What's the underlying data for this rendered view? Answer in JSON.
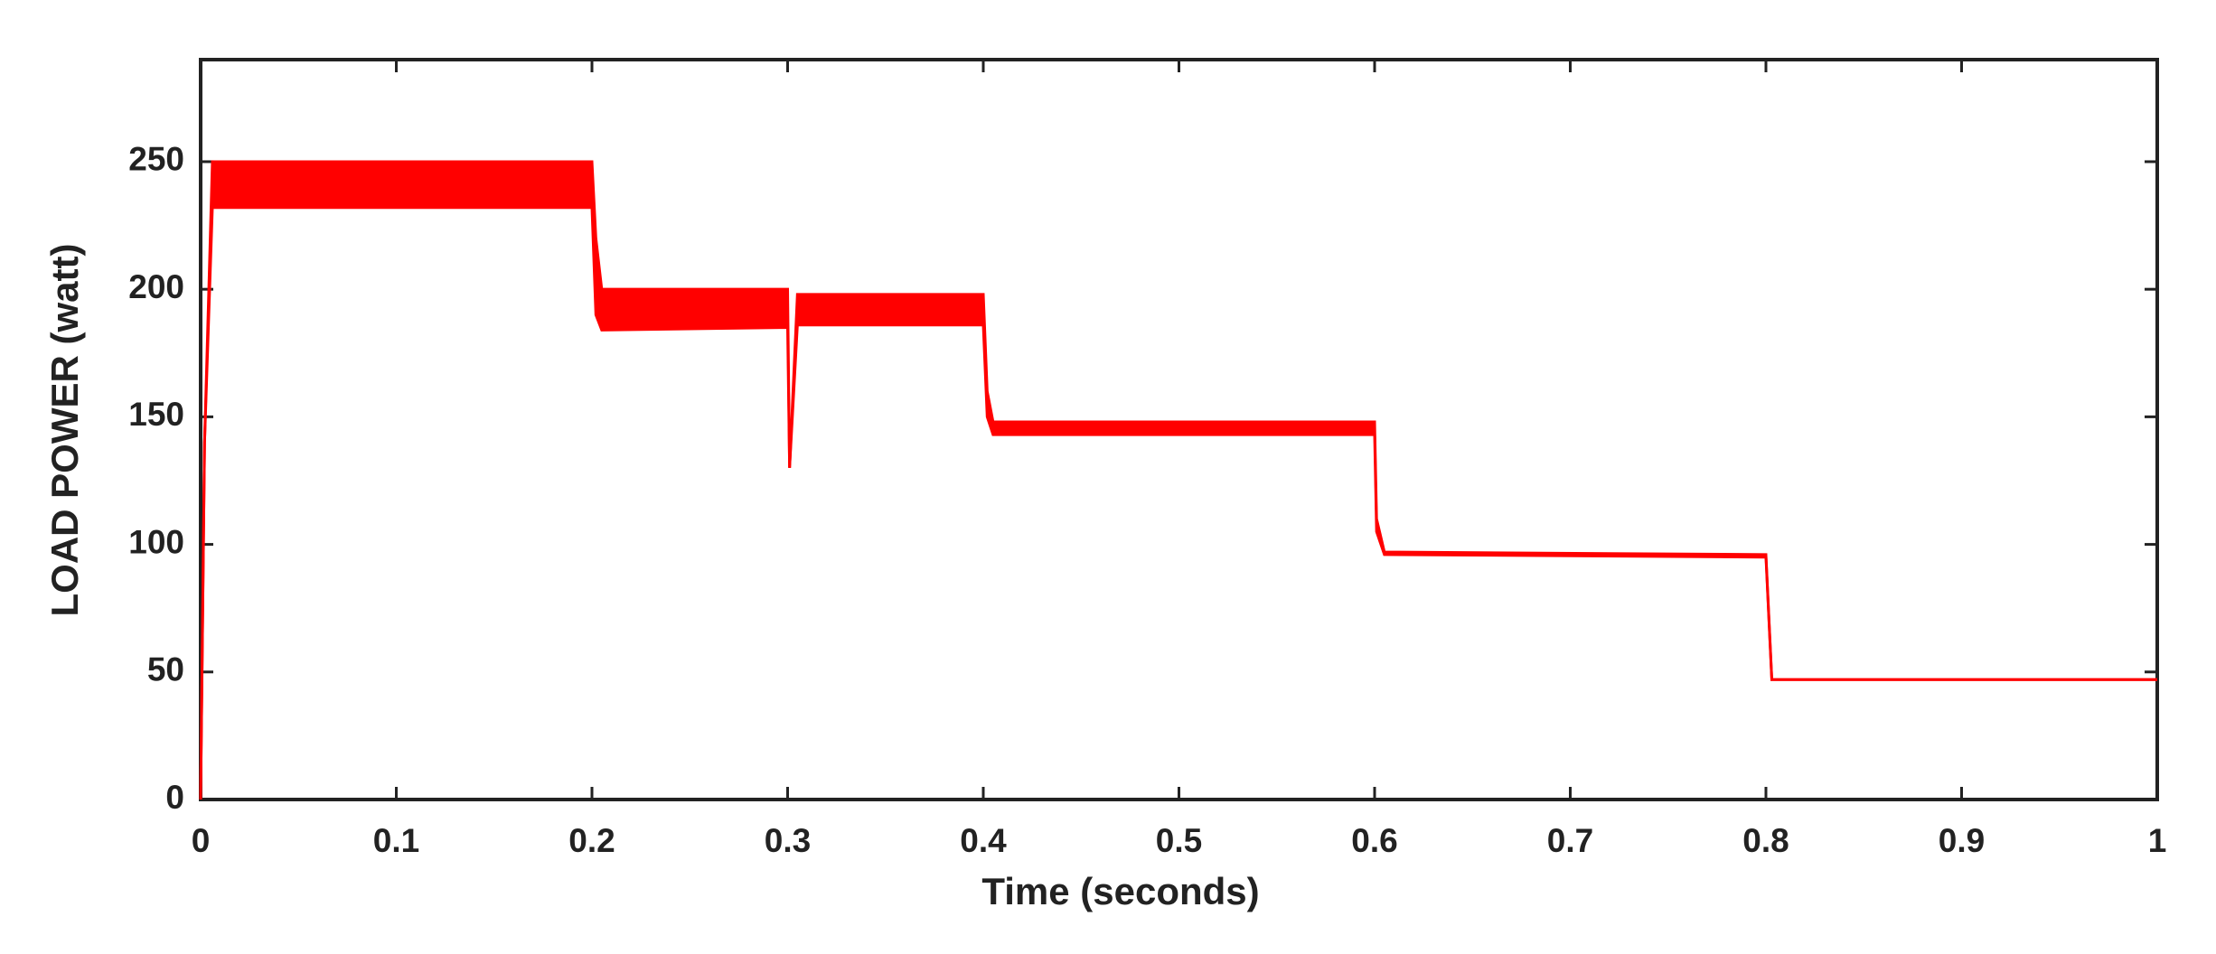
{
  "chart_data": {
    "type": "line",
    "xlabel": "Time (seconds)",
    "ylabel": "LOAD POWER (watt)",
    "x": [
      0,
      0.002,
      0.006,
      0.2,
      0.202,
      0.205,
      0.3,
      0.301,
      0.305,
      0.4,
      0.402,
      0.405,
      0.6,
      0.601,
      0.605,
      0.8,
      0.803,
      1
    ],
    "series": [
      {
        "color": "#ff0000",
        "values": [
          0,
          140,
          250,
          250,
          220,
          200,
          200,
          130,
          198,
          198,
          160,
          148,
          148,
          110,
          97,
          96,
          47,
          47
        ]
      },
      {
        "color": "#ff0000",
        "values": [
          0,
          140,
          232,
          232,
          190,
          184,
          185,
          130,
          186,
          186,
          150,
          143,
          143,
          105,
          96,
          95,
          47,
          47
        ]
      }
    ],
    "xlim": [
      0,
      1
    ],
    "ylim": [
      0,
      290
    ],
    "xticks": [
      0,
      0.1,
      0.2,
      0.3,
      0.4,
      0.5,
      0.6,
      0.7,
      0.8,
      0.9,
      1
    ],
    "yticks": [
      0,
      50,
      100,
      150,
      200,
      250
    ],
    "grid": false
  }
}
